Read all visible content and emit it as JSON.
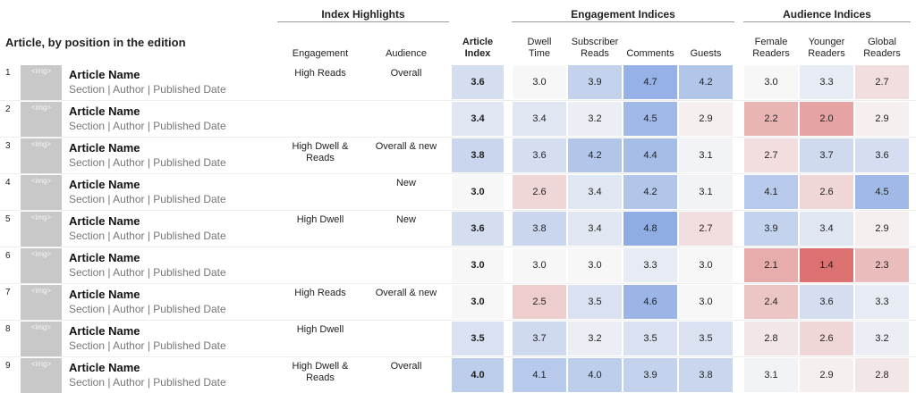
{
  "header": {
    "title": "Article, by position in the edition",
    "groups": {
      "highlights": "Index Highlights",
      "engagement": "Engagement Indices",
      "audience": "Audience Indices"
    },
    "columns": {
      "engagement_hl": "Engagement",
      "audience_hl": "Audience",
      "article_index": "Article Index",
      "dwell_time": "Dwell Time",
      "subscriber_reads": "Subscriber Reads",
      "comments": "Comments",
      "guests": "Guests",
      "female_readers": "Female Readers",
      "younger_readers": "Younger Readers",
      "global_readers": "Global Readers"
    }
  },
  "colors": {
    "high": "#7da0e0",
    "low": "#d96a6a",
    "neutral": "#f7f7f7"
  },
  "chart_data": {
    "type": "table",
    "color_scale": {
      "low_value": 1.4,
      "mid_value": 3.0,
      "high_value": 4.8
    },
    "rows": [
      {
        "num": "1",
        "img": "<img>",
        "name": "Article Name",
        "meta": "Section | Author | Published Date",
        "hl_engagement": "High Reads",
        "hl_audience": "Overall",
        "values": [
          "3.6",
          "3.0",
          "3.9",
          "4.7",
          "4.2",
          "3.0",
          "3.3",
          "2.7"
        ]
      },
      {
        "num": "2",
        "img": "<img>",
        "name": "Article Name",
        "meta": "Section | Author | Published Date",
        "hl_engagement": "",
        "hl_audience": "",
        "values": [
          "3.4",
          "3.4",
          "3.2",
          "4.5",
          "2.9",
          "2.2",
          "2.0",
          "2.9"
        ]
      },
      {
        "num": "3",
        "img": "<img>",
        "name": "Article Name",
        "meta": "Section | Author | Published Date",
        "hl_engagement": "High Dwell & Reads",
        "hl_audience": "Overall & new",
        "values": [
          "3.8",
          "3.6",
          "4.2",
          "4.4",
          "3.1",
          "2.7",
          "3.7",
          "3.6"
        ]
      },
      {
        "num": "4",
        "img": "<img>",
        "name": "Article Name",
        "meta": "Section | Author | Published Date",
        "hl_engagement": "",
        "hl_audience": "New",
        "values": [
          "3.0",
          "2.6",
          "3.4",
          "4.2",
          "3.1",
          "4.1",
          "2.6",
          "4.5"
        ]
      },
      {
        "num": "5",
        "img": "<img>",
        "name": "Article Name",
        "meta": "Section | Author | Published Date",
        "hl_engagement": "High Dwell",
        "hl_audience": "New",
        "values": [
          "3.6",
          "3.8",
          "3.4",
          "4.8",
          "2.7",
          "3.9",
          "3.4",
          "2.9"
        ]
      },
      {
        "num": "6",
        "img": "<img>",
        "name": "Article Name",
        "meta": "Section | Author | Published Date",
        "hl_engagement": "",
        "hl_audience": "",
        "values": [
          "3.0",
          "3.0",
          "3.0",
          "3.3",
          "3.0",
          "2.1",
          "1.4",
          "2.3"
        ]
      },
      {
        "num": "7",
        "img": "<img>",
        "name": "Article Name",
        "meta": "Section | Author | Published Date",
        "hl_engagement": "High Reads",
        "hl_audience": "Overall & new",
        "values": [
          "3.0",
          "2.5",
          "3.5",
          "4.6",
          "3.0",
          "2.4",
          "3.6",
          "3.3"
        ]
      },
      {
        "num": "8",
        "img": "<img>",
        "name": "Article Name",
        "meta": "Section | Author | Published Date",
        "hl_engagement": "High Dwell",
        "hl_audience": "",
        "values": [
          "3.5",
          "3.7",
          "3.2",
          "3.5",
          "3.5",
          "2.8",
          "2.6",
          "3.2"
        ]
      },
      {
        "num": "9",
        "img": "<img>",
        "name": "Article Name",
        "meta": "Section | Author | Published Date",
        "hl_engagement": "High Dwell & Reads",
        "hl_audience": "Overall",
        "values": [
          "4.0",
          "4.1",
          "4.0",
          "3.9",
          "3.8",
          "3.1",
          "2.9",
          "2.8"
        ]
      }
    ]
  }
}
